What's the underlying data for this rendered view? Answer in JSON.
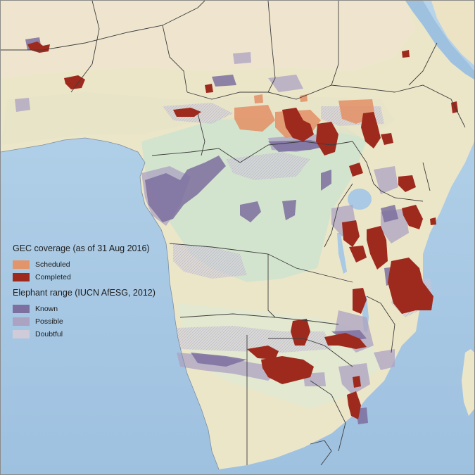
{
  "legend": {
    "coverage": {
      "title": "GEC coverage (as of 31 Aug 2016)",
      "items": [
        {
          "label": "Scheduled",
          "color": "#e2946a"
        },
        {
          "label": "Completed",
          "color": "#9e2a1e"
        }
      ]
    },
    "range": {
      "title": "Elephant range (IUCN AfESG, 2012)",
      "items": [
        {
          "label": "Known",
          "color": "#7d6f9f"
        },
        {
          "label": "Possible",
          "color": "#aca2c2"
        },
        {
          "label": "Doubtful",
          "color": "#cfcbd8"
        }
      ]
    }
  },
  "colors": {
    "ocean": "#a9c9e4",
    "land": "#ece6c9",
    "forest": "#cfe3cf",
    "borders": "#3d3d3d"
  }
}
